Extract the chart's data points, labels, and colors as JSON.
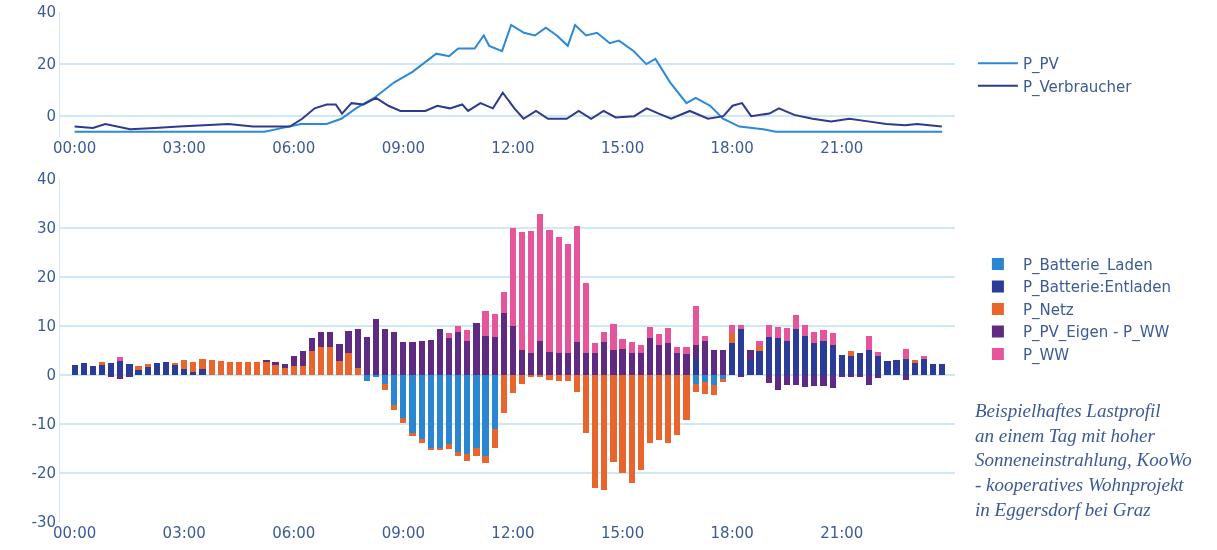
{
  "chart_data": [
    {
      "type": "line",
      "xlim": [
        -0.4,
        24.1
      ],
      "ylim": [
        -8,
        40
      ],
      "yticks": [
        0,
        20,
        40
      ],
      "xticks": [
        {
          "value": 0,
          "label": "00:00"
        },
        {
          "value": 3,
          "label": "03:00"
        },
        {
          "value": 6,
          "label": "06:00"
        },
        {
          "value": 9,
          "label": "09:00"
        },
        {
          "value": 12,
          "label": "12:00"
        },
        {
          "value": 15,
          "label": "15:00"
        },
        {
          "value": 18,
          "label": "18:00"
        },
        {
          "value": 21,
          "label": "21:00"
        }
      ],
      "grid": "y",
      "legend": "right",
      "line_style": "solid",
      "marker": "none",
      "series": [
        {
          "name": "P_PV",
          "color": "#2a8ad8",
          "x": [
            0,
            5.2,
            5.7,
            6.2,
            6.9,
            7.3,
            7.7,
            8.2,
            8.75,
            9.25,
            9.9,
            10.25,
            10.5,
            10.95,
            11.2,
            11.35,
            11.7,
            11.95,
            12.3,
            12.6,
            12.9,
            13.2,
            13.5,
            13.7,
            14.0,
            14.3,
            14.65,
            14.9,
            15.3,
            15.65,
            15.9,
            16.3,
            16.75,
            17.0,
            17.4,
            17.75,
            18.2,
            18.85,
            19.2,
            23.75
          ],
          "values": [
            -6,
            -6,
            -4.5,
            -3,
            -3,
            -1,
            3,
            7,
            13,
            17,
            24,
            23,
            26,
            26,
            31,
            27,
            25,
            35,
            32,
            31,
            34,
            31,
            27,
            35,
            31,
            32,
            28,
            29,
            25,
            20,
            22,
            13,
            5,
            7,
            4,
            -1,
            -4,
            -5,
            -6,
            -6
          ]
        },
        {
          "name": "P_Verbraucher",
          "color": "#2e3a8c",
          "x": [
            0,
            0.5,
            0.84,
            1.52,
            2.19,
            2.86,
            3.54,
            4.21,
            4.88,
            5.56,
            5.89,
            6.23,
            6.57,
            6.9,
            7.15,
            7.32,
            7.58,
            7.91,
            8.25,
            8.59,
            8.92,
            9.6,
            9.93,
            10.27,
            10.61,
            10.77,
            11.11,
            11.45,
            11.72,
            12.04,
            12.29,
            12.63,
            12.96,
            13.47,
            13.8,
            14.14,
            14.48,
            14.81,
            15.32,
            15.66,
            15.99,
            16.33,
            16.84,
            17.34,
            17.76,
            18.01,
            18.27,
            18.52,
            19.02,
            19.28,
            19.7,
            20.2,
            20.71,
            21.21,
            21.72,
            22.22,
            22.73,
            23.06,
            23.74
          ],
          "values": [
            -4,
            -4.5,
            -3,
            -5,
            -4.5,
            -4,
            -3.5,
            -3,
            -4,
            -4,
            -4,
            -1,
            3,
            4.5,
            4.5,
            1,
            5,
            4.5,
            7,
            4,
            2,
            2,
            4,
            3,
            4.5,
            2,
            5,
            3,
            9,
            3,
            -1,
            2,
            -1,
            -1,
            2,
            -1,
            2,
            -0.5,
            0,
            3,
            1,
            -1,
            2,
            -1,
            0,
            4,
            5,
            0,
            1,
            3,
            0.5,
            -1,
            -2,
            -1,
            -2,
            -3,
            -3.5,
            -3,
            -4
          ]
        }
      ]
    },
    {
      "type": "bar",
      "stacked": true,
      "xlim": [
        -0.4,
        24.1
      ],
      "ylim": [
        -30,
        40
      ],
      "yticks": [
        -30,
        -20,
        -10,
        0,
        10,
        20,
        30,
        40
      ],
      "xticks": [
        {
          "value": 0,
          "label": "00:00"
        },
        {
          "value": 3,
          "label": "03:00"
        },
        {
          "value": 6,
          "label": "06:00"
        },
        {
          "value": 9,
          "label": "09:00"
        },
        {
          "value": 12,
          "label": "12:00"
        },
        {
          "value": 15,
          "label": "15:00"
        },
        {
          "value": 18,
          "label": "18:00"
        },
        {
          "value": 21,
          "label": "21:00"
        }
      ],
      "grid": "y",
      "legend": "right",
      "x": [
        0,
        0.25,
        0.5,
        0.75,
        1,
        1.25,
        1.5,
        1.75,
        2,
        2.25,
        2.5,
        2.75,
        3,
        3.25,
        3.5,
        3.75,
        4,
        4.25,
        4.5,
        4.75,
        5,
        5.25,
        5.5,
        5.75,
        6,
        6.25,
        6.5,
        6.75,
        7,
        7.25,
        7.5,
        7.75,
        8,
        8.25,
        8.5,
        8.75,
        9,
        9.25,
        9.5,
        9.75,
        10,
        10.25,
        10.5,
        10.75,
        11,
        11.25,
        11.5,
        11.75,
        12,
        12.25,
        12.5,
        12.75,
        13,
        13.25,
        13.5,
        13.75,
        14,
        14.25,
        14.5,
        14.75,
        15,
        15.25,
        15.5,
        15.75,
        16,
        16.25,
        16.5,
        16.75,
        17,
        17.25,
        17.5,
        17.75,
        18,
        18.25,
        18.5,
        18.75,
        19,
        19.25,
        19.5,
        19.75,
        20,
        20.25,
        20.5,
        20.75,
        21,
        21.25,
        21.5,
        21.75,
        22,
        22.25,
        22.5,
        22.75,
        23,
        23.25,
        23.5,
        23.75
      ],
      "series": [
        {
          "name": "P_Batterie_Laden",
          "color": "#2a86d0",
          "values": [
            null,
            null,
            null,
            null,
            null,
            null,
            null,
            null,
            null,
            null,
            null,
            null,
            null,
            null,
            null,
            null,
            null,
            null,
            null,
            null,
            null,
            null,
            null,
            null,
            null,
            null,
            null,
            null,
            null,
            null,
            null,
            null,
            -1.3,
            -0.3,
            -1.8,
            -6.1,
            -8.8,
            -11.8,
            -13.1,
            -14.8,
            -14.8,
            -14.1,
            -15.8,
            -16.2,
            -14.8,
            -16.6,
            -11.1,
            null,
            null,
            null,
            null,
            null,
            null,
            null,
            null,
            null,
            null,
            null,
            null,
            null,
            null,
            null,
            null,
            null,
            null,
            null,
            null,
            null,
            -1.8,
            -1.5,
            -2,
            -0.8,
            null,
            null,
            null,
            null,
            null,
            null,
            null,
            null,
            null,
            null,
            null,
            null,
            null,
            null,
            null,
            null,
            null,
            null,
            null,
            null,
            null,
            null,
            null,
            null
          ]
        },
        {
          "name": "P_Batterie:Entladen",
          "color": "#2b3c98",
          "values": [
            2,
            2.5,
            1.8,
            2,
            2.4,
            2.9,
            2.3,
            1,
            1.6,
            2.5,
            2.7,
            2,
            1.2,
            0.7,
            1.3,
            null,
            null,
            null,
            null,
            null,
            null,
            null,
            null,
            null,
            null,
            null,
            null,
            null,
            null,
            null,
            null,
            null,
            null,
            null,
            null,
            null,
            null,
            null,
            null,
            null,
            null,
            null,
            null,
            null,
            null,
            null,
            null,
            null,
            null,
            null,
            null,
            null,
            null,
            null,
            null,
            null,
            null,
            null,
            null,
            null,
            null,
            null,
            null,
            null,
            null,
            null,
            null,
            null,
            3.4,
            null,
            null,
            null,
            6.5,
            9.4,
            3,
            4.9,
            7.7,
            7.5,
            7,
            9.4,
            7.9,
            6.5,
            6.9,
            6.1,
            4.1,
            3.9,
            4.4,
            5.2,
            3.9,
            2.9,
            3,
            3.2,
            2.5,
            3.2,
            2.3,
            2.2
          ]
        },
        {
          "name": "P_Netz",
          "color": "#e8662e",
          "values": [
            null,
            null,
            null,
            0.7,
            null,
            null,
            null,
            0.8,
            0.6,
            null,
            null,
            0.5,
            1.8,
            2,
            1.9,
            3,
            2.9,
            2.7,
            2.7,
            2.7,
            2.7,
            2.6,
            2,
            1.4,
            1.8,
            1.8,
            5,
            5.8,
            5.8,
            2.8,
            4.5,
            1.5,
            null,
            null,
            -1.3,
            -1,
            -0.9,
            -0.7,
            -0.7,
            -0.5,
            -0.5,
            -1,
            -0.8,
            -1.3,
            -1.7,
            -1.3,
            -3.8,
            -7.8,
            -3.7,
            -1.8,
            -0.3,
            -0.3,
            -1.1,
            -1.3,
            -1.3,
            -3.5,
            -11.8,
            -23.1,
            -23.5,
            -17.8,
            -20.1,
            -22.1,
            -19.3,
            -13.8,
            -13.3,
            -13.8,
            -12.3,
            -9.1,
            -1.7,
            -2.3,
            -2,
            -0.7,
            2,
            null,
            null,
            1,
            null,
            null,
            null,
            null,
            null,
            null,
            null,
            null,
            null,
            1,
            null,
            null,
            null,
            null,
            null,
            null,
            0.5,
            null,
            null,
            null
          ]
        },
        {
          "name": "P_PV_Eigen - P_WW",
          "color": "#5f2a82",
          "values": [
            null,
            null,
            null,
            null,
            -0.5,
            -0.8,
            -0.4,
            null,
            null,
            null,
            null,
            null,
            null,
            null,
            null,
            null,
            null,
            null,
            null,
            null,
            null,
            0.5,
            0.7,
            0.8,
            2,
            3.2,
            2.5,
            3,
            3,
            3.5,
            4.5,
            7.9,
            7.8,
            11.4,
            9.3,
            8.7,
            6.7,
            6.7,
            7,
            7.2,
            9.3,
            7.5,
            8.7,
            6.9,
            10.7,
            8,
            7.7,
            12.7,
            10,
            5.2,
            4.4,
            6.9,
            4.7,
            4.5,
            4.5,
            6.7,
            4.4,
            4.4,
            6.7,
            5.2,
            5.3,
            4.5,
            4.4,
            7.5,
            6.1,
            6.5,
            4.5,
            4.2,
            2.8,
            6.9,
            5.1,
            5.1,
            null,
            -0.3,
            2.1,
            null,
            -1.7,
            -3.1,
            -2.1,
            -2.1,
            -2.5,
            -2.3,
            -2.3,
            -2.6,
            -0.5,
            -0.3,
            -0.3,
            -2.1,
            -0.7,
            null,
            null,
            -1,
            null,
            null,
            null,
            null
          ]
        },
        {
          "name": "P_WW",
          "color": "#e6559a",
          "values": [
            null,
            null,
            null,
            null,
            null,
            0.8,
            null,
            null,
            null,
            null,
            null,
            null,
            null,
            null,
            null,
            null,
            null,
            null,
            null,
            null,
            null,
            null,
            null,
            null,
            null,
            null,
            null,
            null,
            null,
            null,
            null,
            null,
            null,
            null,
            null,
            null,
            null,
            null,
            null,
            null,
            null,
            1,
            1.4,
            2.3,
            null,
            5,
            4.7,
            4.3,
            20,
            23.9,
            25,
            25.9,
            24.9,
            23.6,
            22.2,
            23.7,
            14.3,
            2.1,
            2,
            5.3,
            2.1,
            2.3,
            1.8,
            2.3,
            2.3,
            3,
            1.3,
            1.5,
            7.8,
            1.1,
            null,
            null,
            1.8,
            0.9,
            null,
            1,
            2.5,
            2.3,
            2.5,
            2.9,
            2.3,
            2.3,
            2.3,
            2.5,
            null,
            null,
            null,
            2.7,
            0.8,
            null,
            null,
            2.2,
            null,
            0.7,
            null,
            null
          ]
        }
      ],
      "annotations": [
        "Beispielhaftes Lastprofil an einem Tag mit hoher Sonneneinstrahlung, KooWo - kooperatives Wohnprojekt in Eggersdorf bei Graz"
      ]
    }
  ]
}
